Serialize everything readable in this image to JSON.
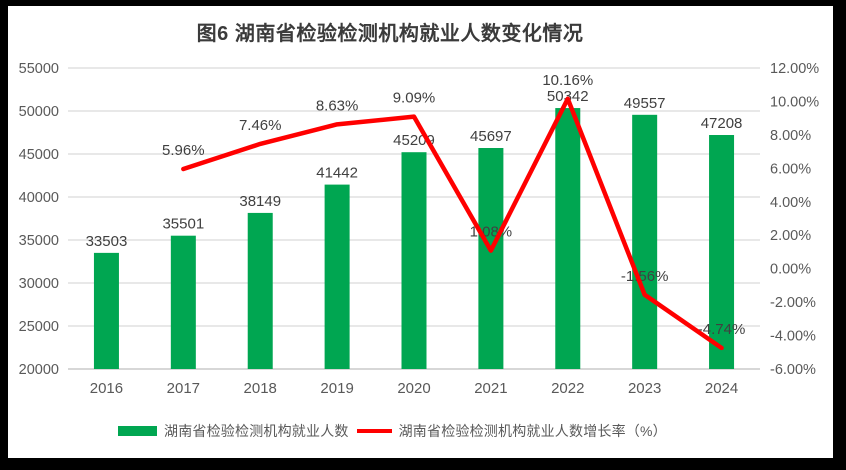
{
  "chart": {
    "title": "图6 湖南省检验检测机构就业人数变化情况",
    "legend": [
      {
        "label": "湖南省检验检测机构就业人数",
        "type": "bar",
        "color": "#00A651"
      },
      {
        "label": "湖南省检验检测机构就业人数增长率（%）",
        "type": "line",
        "color": "#FF0000"
      }
    ]
  },
  "chart_data": {
    "type": "bar",
    "subtype": "combo bar+line, dual axis",
    "title": "图6 湖南省检验检测机构就业人数变化情况",
    "categories": [
      "2016",
      "2017",
      "2018",
      "2019",
      "2020",
      "2021",
      "2022",
      "2023",
      "2024"
    ],
    "series": [
      {
        "name": "湖南省检验检测机构就业人数",
        "type": "bar",
        "axis": "left",
        "color": "#00A651",
        "values": [
          33503,
          35501,
          38149,
          41442,
          45209,
          45697,
          50342,
          49557,
          47208
        ],
        "labels": [
          "33503",
          "35501",
          "38149",
          "41442",
          "45209",
          "45697",
          "50342",
          "49557",
          "47208"
        ]
      },
      {
        "name": "湖南省检验检测机构就业人数增长率（%）",
        "type": "line",
        "axis": "right",
        "color": "#FF0000",
        "values": [
          null,
          5.96,
          7.46,
          8.63,
          9.09,
          1.08,
          10.16,
          -1.56,
          -4.74
        ],
        "labels": [
          null,
          "5.96%",
          "7.46%",
          "8.63%",
          "9.09%",
          "1.08%",
          "10.16%",
          "-1.56%",
          "-4.74%"
        ]
      }
    ],
    "left_axis": {
      "min": 20000,
      "max": 55000,
      "step": 5000,
      "tick_labels": [
        "20000",
        "25000",
        "30000",
        "35000",
        "40000",
        "45000",
        "50000",
        "55000"
      ]
    },
    "right_axis": {
      "min": -6,
      "max": 12,
      "step": 2,
      "tick_labels": [
        "-6.00%",
        "-4.00%",
        "-2.00%",
        "0.00%",
        "2.00%",
        "4.00%",
        "6.00%",
        "8.00%",
        "10.00%",
        "12.00%"
      ]
    },
    "grid": "horizontal gridlines aligned to left axis ticks",
    "legend_position": "bottom",
    "colors": {
      "grid": "#D9D9D9",
      "axis_line": "#BFBFBF",
      "data_label": "#404040",
      "tick_label": "#595959"
    }
  }
}
